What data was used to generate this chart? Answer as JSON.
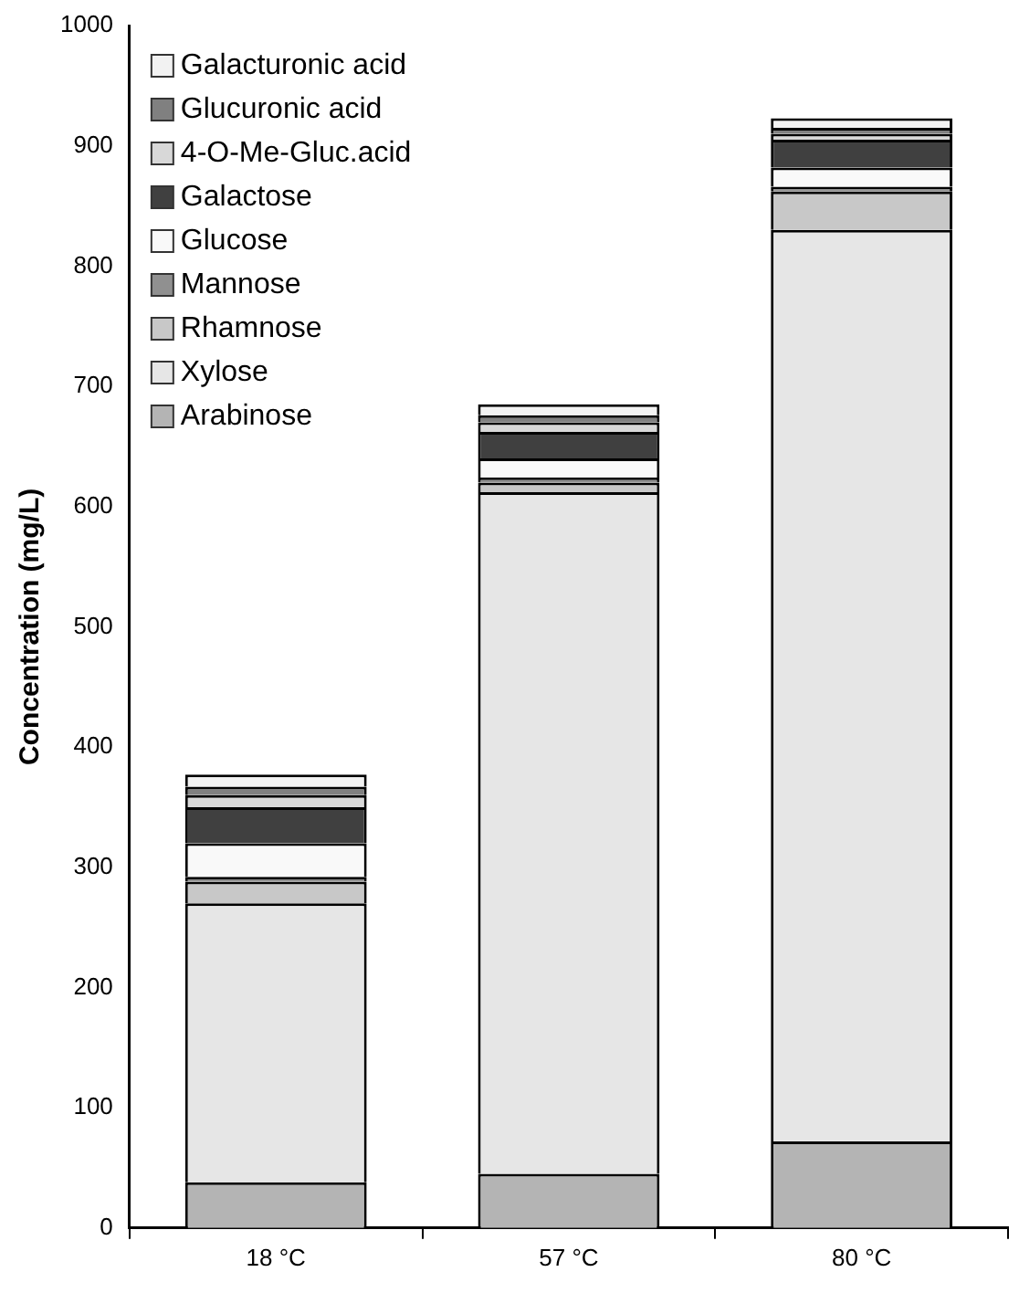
{
  "chart_data": {
    "type": "bar",
    "stacked": true,
    "ylabel": "Concentration (mg/L)",
    "categories": [
      "18 °C",
      "57 °C",
      "80 °C"
    ],
    "series": [
      {
        "name": "Arabinose",
        "color": "#b4b4b4",
        "values": [
          38,
          45,
          72
        ]
      },
      {
        "name": "Xylose",
        "color": "#e6e6e6",
        "values": [
          232,
          567,
          758
        ]
      },
      {
        "name": "Rhamnose",
        "color": "#c8c8c8",
        "values": [
          18,
          8,
          32
        ]
      },
      {
        "name": "Mannose",
        "color": "#909090",
        "values": [
          4,
          4,
          4
        ]
      },
      {
        "name": "Glucose",
        "color": "#f9f9f9",
        "values": [
          28,
          16,
          16
        ]
      },
      {
        "name": "Galactose",
        "color": "#404040",
        "values": [
          30,
          22,
          23
        ]
      },
      {
        "name": "4-O-Me-Gluc.acid",
        "color": "#d8d8d8",
        "values": [
          10,
          8,
          5
        ]
      },
      {
        "name": "Glucuronic acid",
        "color": "#808080",
        "values": [
          7,
          6,
          5
        ]
      },
      {
        "name": "Galacturonic acid",
        "color": "#f2f2f2",
        "values": [
          10,
          9,
          8
        ]
      }
    ],
    "ylim": [
      0,
      1000
    ],
    "yticks": [
      0,
      100,
      200,
      300,
      400,
      500,
      600,
      700,
      800,
      900,
      1000
    ],
    "grid": false,
    "legend": "top left"
  }
}
